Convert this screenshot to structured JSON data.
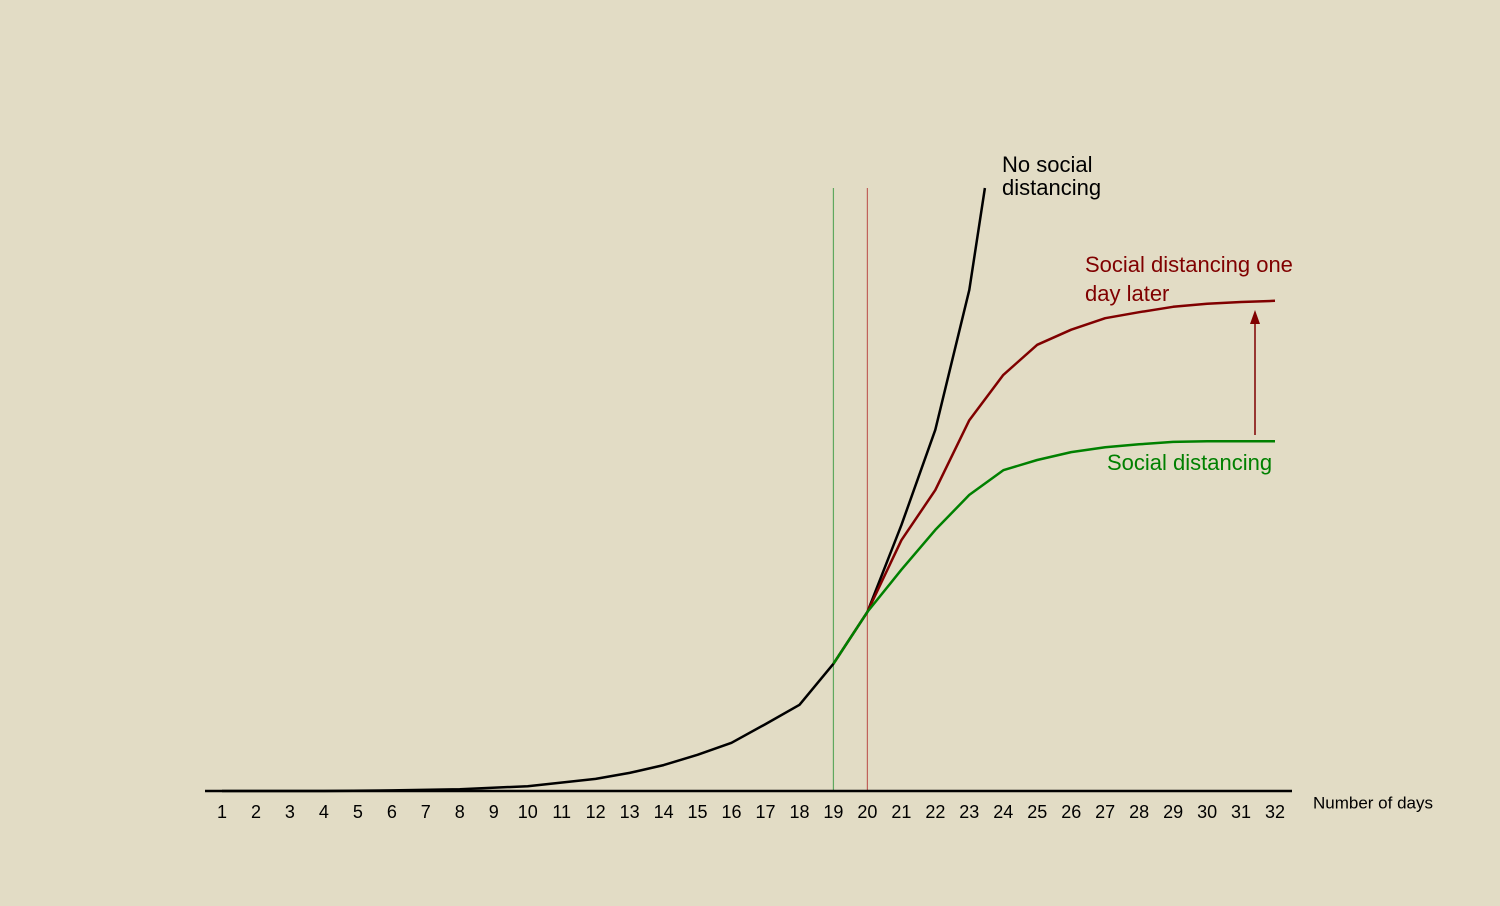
{
  "chart_data": {
    "type": "line",
    "x_label": "Number of days",
    "xlim": [
      0.5,
      32.5
    ],
    "xticks": [
      1,
      2,
      3,
      4,
      5,
      6,
      7,
      8,
      9,
      10,
      11,
      12,
      13,
      14,
      15,
      16,
      17,
      18,
      19,
      20,
      21,
      22,
      23,
      24,
      25,
      26,
      27,
      28,
      29,
      30,
      31,
      32
    ],
    "ylim": [
      0,
      100
    ],
    "vlines": [
      {
        "x": 19,
        "color": "#5fa85f"
      },
      {
        "x": 20,
        "color": "#c0605a"
      }
    ],
    "series": [
      {
        "name": "No social distancing",
        "color": "#000000",
        "x": [
          1,
          4,
          6,
          8,
          10,
          12,
          13,
          14,
          15,
          16,
          17,
          18,
          19,
          20,
          21,
          22,
          23,
          23.46
        ],
        "values": [
          0,
          0,
          0.1,
          0.3,
          0.8,
          2.0,
          3.0,
          4.3,
          6.0,
          8.0,
          11.1,
          14.3,
          21.1,
          29.7,
          44.1,
          59.9,
          83.1,
          100
        ]
      },
      {
        "name": "Social distancing one day later",
        "color": "#800000",
        "x": [
          19,
          20,
          21,
          22,
          23,
          24,
          25,
          26,
          27,
          28,
          29,
          30,
          31,
          32
        ],
        "values": [
          21.1,
          29.7,
          41.6,
          49.9,
          61.5,
          69.0,
          74.0,
          76.5,
          78.4,
          79.4,
          80.3,
          80.8,
          81.1,
          81.3
        ]
      },
      {
        "name": "Social distancing",
        "color": "#008000",
        "x": [
          19,
          20,
          21,
          22,
          23,
          24,
          25,
          26,
          27,
          28,
          29,
          30,
          31,
          32
        ],
        "values": [
          21.1,
          29.7,
          36.7,
          43.3,
          49.1,
          53.2,
          54.9,
          56.2,
          57.0,
          57.5,
          57.9,
          58.0,
          58.0,
          58.0
        ]
      }
    ]
  }
}
